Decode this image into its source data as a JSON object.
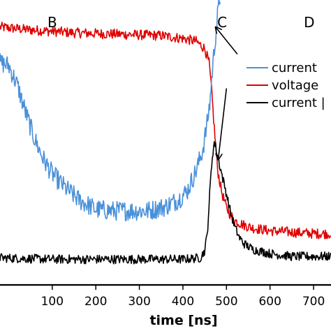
{
  "chart_data": {
    "type": "line",
    "xlabel": "time [ns]",
    "xlim": [
      -20,
      740
    ],
    "ylim": [
      0,
      1
    ],
    "x_ticks": [
      "100",
      "200",
      "300",
      "400",
      "500",
      "600",
      "700"
    ],
    "x_tick_values": [
      100,
      200,
      300,
      400,
      500,
      600,
      700
    ],
    "grid": false,
    "legend_position": "right",
    "region_labels": [
      {
        "text": "B",
        "x": 100
      },
      {
        "text": "C",
        "x": 490
      },
      {
        "text": "D",
        "x": 690
      }
    ],
    "annotation_arrows": [
      {
        "from": [
          525,
          0.81
        ],
        "to": [
          475,
          0.905
        ]
      },
      {
        "from": [
          500,
          0.69
        ],
        "to": [
          481,
          0.44
        ]
      }
    ],
    "series": [
      {
        "name": "current",
        "color": "#4a90d9",
        "noise": 0.035,
        "x": [
          -20,
          0,
          20,
          40,
          60,
          80,
          100,
          130,
          160,
          200,
          240,
          280,
          320,
          360,
          390,
          410,
          430,
          445,
          455,
          462,
          468,
          474,
          480,
          486
        ],
        "y": [
          0.78,
          0.77,
          0.7,
          0.6,
          0.51,
          0.44,
          0.39,
          0.34,
          0.3,
          0.265,
          0.26,
          0.26,
          0.26,
          0.275,
          0.3,
          0.33,
          0.4,
          0.47,
          0.56,
          0.64,
          0.76,
          0.86,
          0.95,
          1.02
        ]
      },
      {
        "name": "voltage",
        "color": "#e00000",
        "noise": 0.018,
        "x": [
          -20,
          50,
          150,
          250,
          350,
          400,
          430,
          450,
          460,
          466,
          472,
          480,
          490,
          500,
          510,
          520,
          540,
          560,
          600,
          650,
          700,
          740
        ],
        "y": [
          0.905,
          0.895,
          0.885,
          0.88,
          0.875,
          0.865,
          0.855,
          0.83,
          0.78,
          0.68,
          0.55,
          0.4,
          0.32,
          0.27,
          0.245,
          0.225,
          0.21,
          0.2,
          0.19,
          0.185,
          0.18,
          0.18
        ]
      },
      {
        "name": "current |",
        "color": "#000000",
        "noise": 0.016,
        "x": [
          -20,
          100,
          200,
          300,
          400,
          440,
          450,
          456,
          460,
          464,
          468,
          472,
          476,
          480,
          486,
          492,
          500,
          510,
          520,
          530,
          540,
          560,
          600,
          650,
          700,
          740
        ],
        "y": [
          0.095,
          0.09,
          0.09,
          0.09,
          0.09,
          0.095,
          0.12,
          0.18,
          0.28,
          0.38,
          0.46,
          0.5,
          0.48,
          0.45,
          0.41,
          0.37,
          0.32,
          0.25,
          0.2,
          0.165,
          0.145,
          0.125,
          0.11,
          0.1,
          0.1,
          0.1
        ]
      }
    ]
  }
}
